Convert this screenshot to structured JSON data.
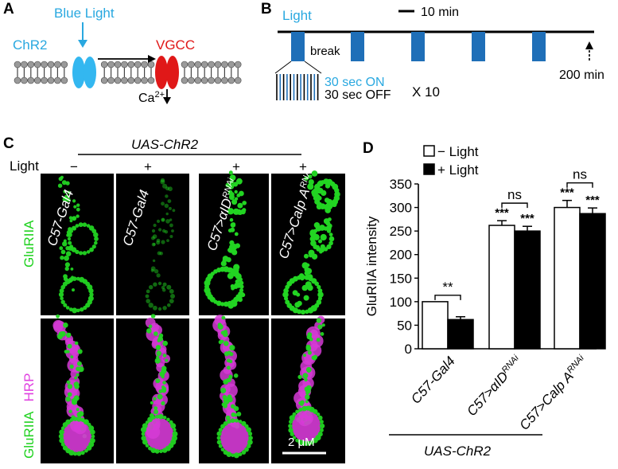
{
  "panel_a": {
    "letter": "A",
    "blue_light": "Blue Light",
    "chr2": "ChR2",
    "vgcc": "VGCC",
    "ca_base": "Ca",
    "ca_sup": "2+"
  },
  "panel_b": {
    "letter": "B",
    "light": "Light",
    "scale": "10 min",
    "break": "break",
    "end": "200 min",
    "on": "30 sec ON",
    "off": "30 sec OFF",
    "times": "X 10"
  },
  "panel_c": {
    "letter": "C",
    "header": "UAS-ChR2",
    "light_label": "Light",
    "signs": [
      "−",
      "+",
      "+",
      "+"
    ],
    "genotypes": [
      {
        "base": "C57-Gal4",
        "sup": ""
      },
      {
        "base": "C57-Gal4",
        "sup": ""
      },
      {
        "base": "C57>αID",
        "sup": "RNAi"
      },
      {
        "base": "C57>Calp A",
        "sup": "RNAi"
      }
    ],
    "row1_label": "GluRIIA",
    "row2_label_a": "GluRIIA",
    "row2_label_b": "HRP",
    "scale_bar": "2 μM",
    "colors": {
      "green": "#1fd21f",
      "magenta": "#e040e0"
    }
  },
  "panel_d": {
    "letter": "D",
    "footer": "UAS-ChR2",
    "chart_data": {
      "type": "bar",
      "categories": [
        {
          "base": "C57-Gal4",
          "sup": ""
        },
        {
          "base": "C57>αID",
          "sup": "RNAi"
        },
        {
          "base": "C57>Calp A",
          "sup": "RNAi"
        }
      ],
      "series": [
        {
          "name": "− Light",
          "values": [
            100,
            262,
            300
          ],
          "errors": [
            0,
            10,
            15
          ],
          "color": "#ffffff"
        },
        {
          "name": "+ Light",
          "values": [
            62,
            250,
            287
          ],
          "errors": [
            6,
            10,
            12
          ],
          "color": "#000000"
        }
      ],
      "ylabel": "GluRIIA  intensity",
      "ylim": [
        0,
        350
      ],
      "yticks": [
        0,
        50,
        100,
        150,
        200,
        250,
        300,
        350
      ],
      "legend_position": "top-left",
      "significance": {
        "bars": [
          "***",
          "***",
          "***",
          "***"
        ],
        "brackets": [
          "**",
          "ns",
          "ns"
        ]
      }
    }
  }
}
